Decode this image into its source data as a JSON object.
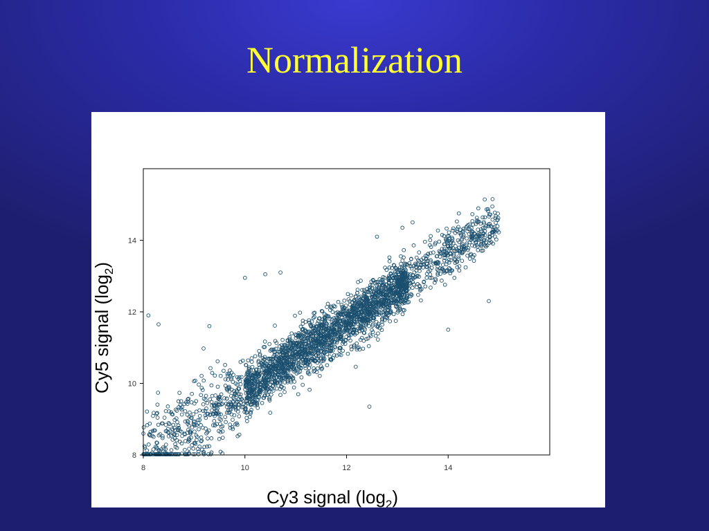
{
  "slide": {
    "title": "Normalization"
  },
  "chart_data": {
    "type": "scatter",
    "xlabel": "Cy3 signal (log2)",
    "ylabel": "Cy5 signal (log2)",
    "xlabel_parts": [
      "Cy3 signal (log",
      "2",
      ")"
    ],
    "ylabel_parts": [
      "Cy5 signal (log",
      "2",
      ")"
    ],
    "xlim": [
      8,
      16
    ],
    "ylim": [
      8,
      16
    ],
    "xticks": [
      8,
      10,
      12,
      14
    ],
    "yticks": [
      8,
      10,
      12,
      14
    ],
    "grid": false,
    "marker": "open-circle",
    "color": "#1b4f6e",
    "trend": {
      "slope": 0.95,
      "intercept": 0.3,
      "x_range": [
        8.0,
        15.0
      ]
    },
    "approx_point_count": 3000,
    "notable_points": [
      {
        "x": 8.1,
        "y": 11.9
      },
      {
        "x": 8.3,
        "y": 11.65
      },
      {
        "x": 10.0,
        "y": 12.95
      },
      {
        "x": 10.4,
        "y": 13.05
      },
      {
        "x": 10.7,
        "y": 13.1
      },
      {
        "x": 12.45,
        "y": 9.35
      },
      {
        "x": 13.3,
        "y": 14.5
      },
      {
        "x": 13.1,
        "y": 14.35
      },
      {
        "x": 14.0,
        "y": 11.5
      },
      {
        "x": 14.8,
        "y": 12.3
      },
      {
        "x": 12.6,
        "y": 14.1
      },
      {
        "x": 9.3,
        "y": 11.6
      },
      {
        "x": 8.9,
        "y": 8.05
      },
      {
        "x": 8.0,
        "y": 8.6
      }
    ]
  }
}
